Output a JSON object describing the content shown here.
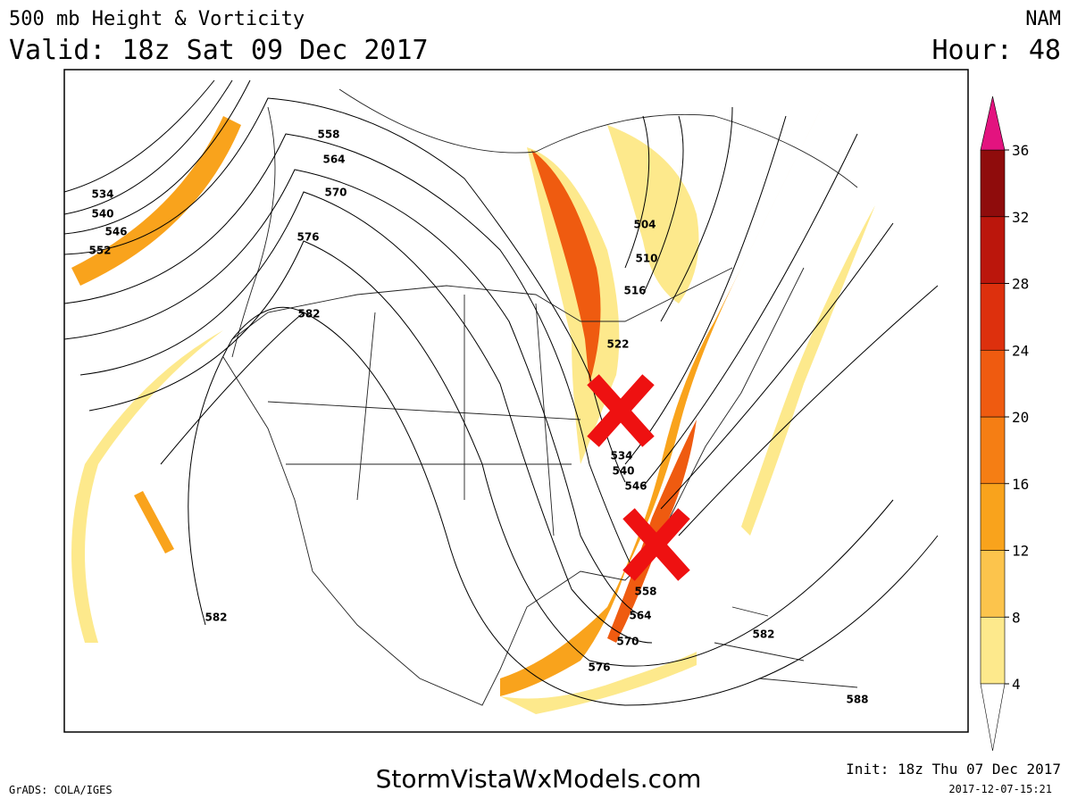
{
  "header": {
    "title": "500 mb Height & Vorticity",
    "valid": "Valid: 18z Sat 09 Dec 2017",
    "model": "NAM",
    "hour": "Hour: 48"
  },
  "colorbar": {
    "ticks": [
      4,
      8,
      12,
      16,
      20,
      24,
      28,
      32,
      36
    ],
    "colors": [
      "#fde98c",
      "#fcc44c",
      "#f9a31c",
      "#f57e14",
      "#ef5b10",
      "#dd300d",
      "#bb160c",
      "#8f0c0c"
    ],
    "over_color": "#e3137f"
  },
  "contour_labels": [
    "534",
    "540",
    "546",
    "552",
    "558",
    "564",
    "570",
    "576",
    "582",
    "582",
    "504",
    "510",
    "516",
    "522",
    "534",
    "540",
    "546",
    "558",
    "564",
    "570",
    "576",
    "582",
    "588"
  ],
  "footer": {
    "software": "GrADS: COLA/IGES",
    "site": "StormVistaWxModels.com",
    "init": "Init: 18z Thu 07 Dec 2017",
    "timestamp": "2017-12-07-15:21"
  }
}
